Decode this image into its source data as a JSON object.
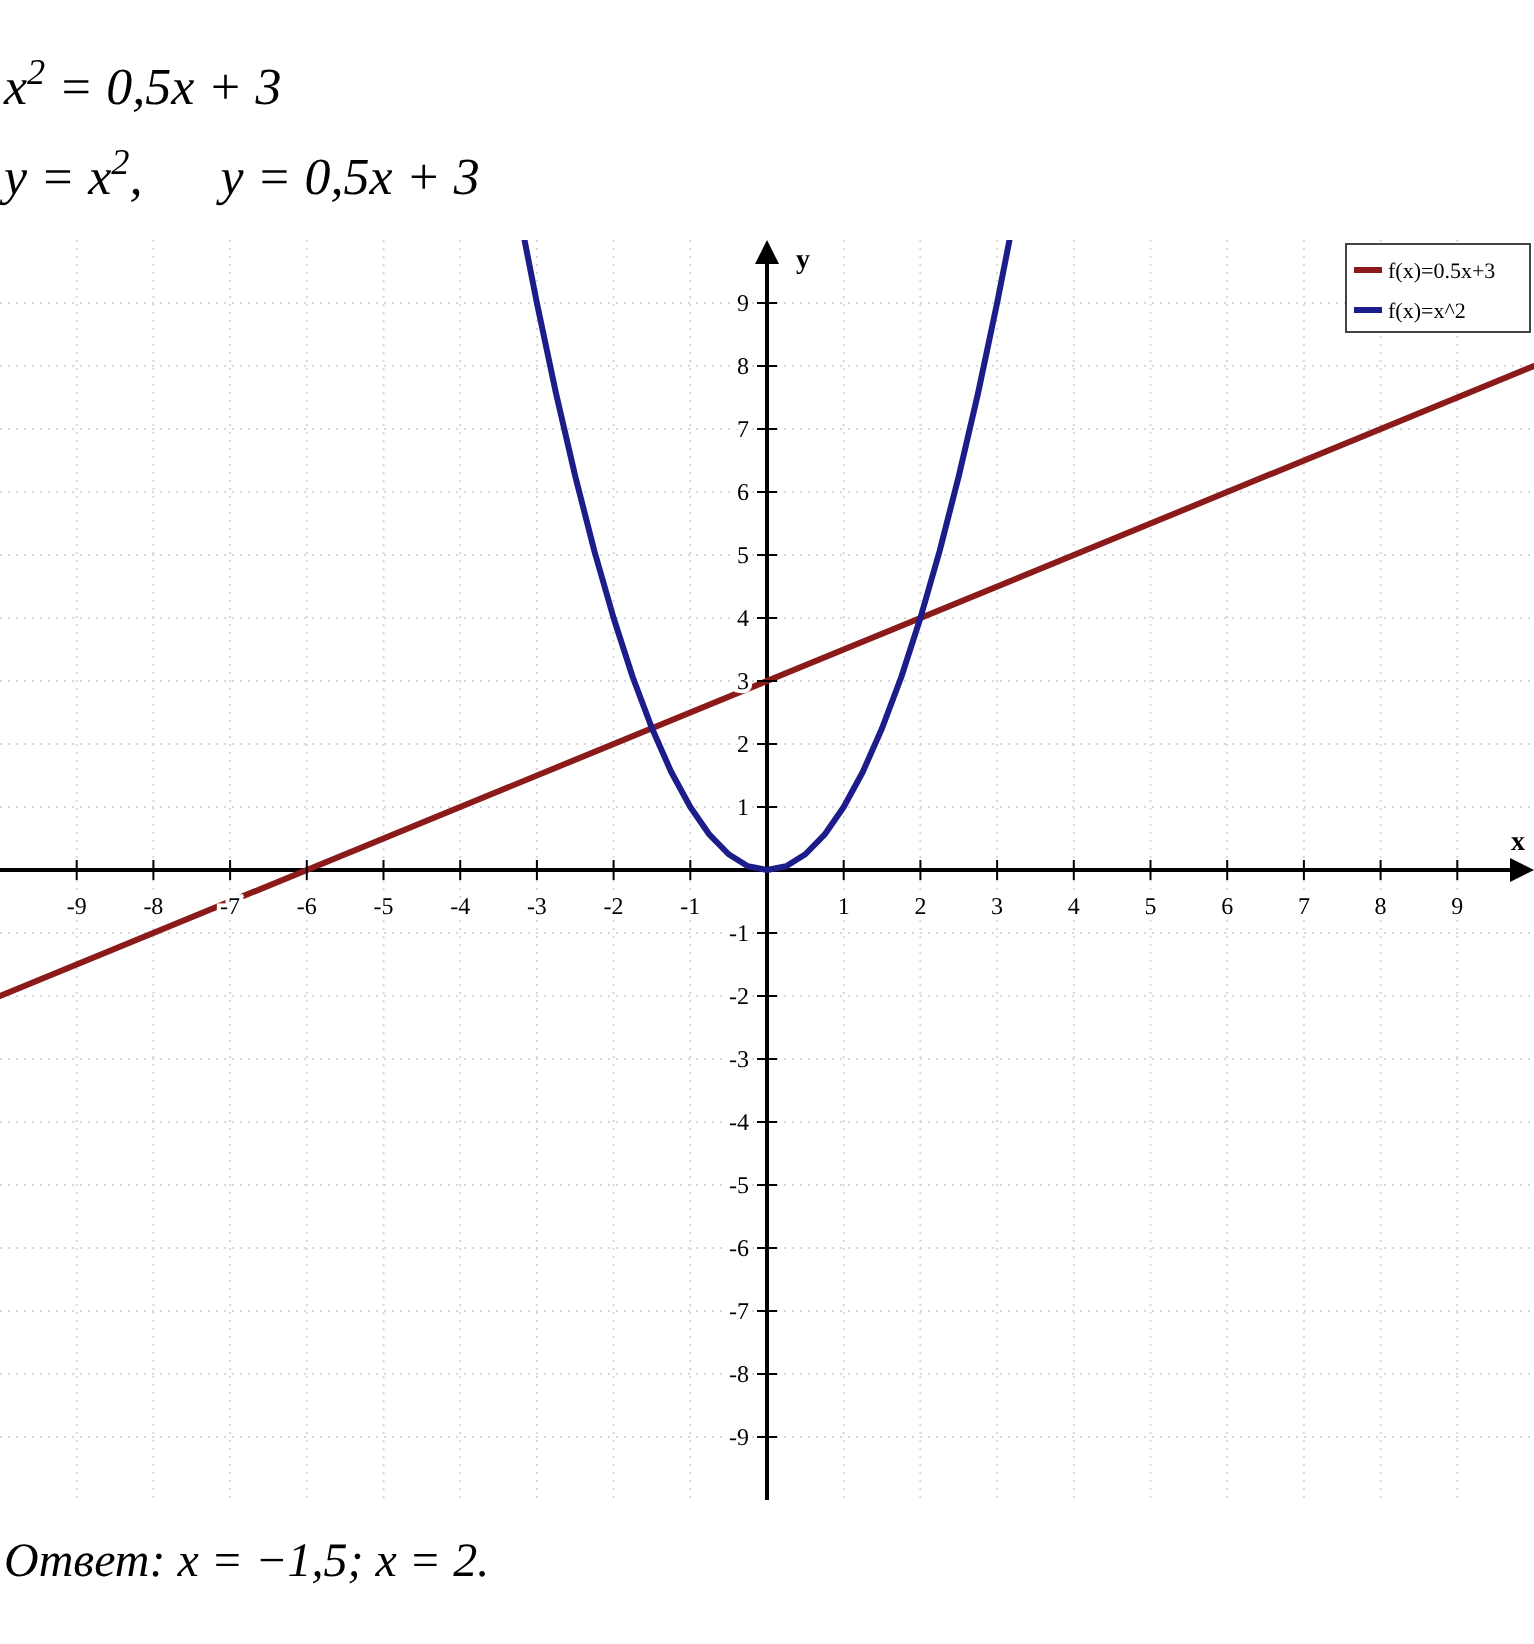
{
  "chart_data": {
    "type": "line",
    "title": "x$^{2}$ = 0,5x + 3",
    "subtitle": "y = x$^{2}$,      y = 0,5x + 3",
    "xlabel": "x",
    "ylabel": "y",
    "annotations": [
      "Ответ: x = −1,5; x = 2."
    ],
    "xlim": [
      -10,
      10
    ],
    "ylim": [
      -10,
      10
    ],
    "xticks": [
      -9,
      -8,
      -7,
      -6,
      -5,
      -4,
      -3,
      -2,
      -1,
      1,
      2,
      3,
      4,
      5,
      6,
      7,
      8,
      9
    ],
    "yticks": [
      -9,
      -8,
      -7,
      -6,
      -5,
      -4,
      -3,
      -2,
      -1,
      1,
      2,
      3,
      4,
      5,
      6,
      7,
      8,
      9
    ],
    "grid": true,
    "legend": "top right",
    "marker": "none",
    "line_style": "solid",
    "series": [
      {
        "name": "f(x)=0.5x+3",
        "color": "#8b1a1a",
        "x": [
          -10,
          10
        ],
        "values": [
          -2,
          8
        ]
      },
      {
        "name": "f(x)=x^2",
        "color": "#1c1c8a",
        "x": [
          -3.16,
          -3,
          -2.75,
          -2.5,
          -2.25,
          -2,
          -1.75,
          -1.5,
          -1.25,
          -1,
          -0.75,
          -0.5,
          -0.25,
          0,
          0.25,
          0.5,
          0.75,
          1,
          1.25,
          1.5,
          1.75,
          2,
          2.25,
          2.5,
          2.75,
          3,
          3.16
        ],
        "values": [
          9.99,
          9,
          7.56,
          6.25,
          5.06,
          4,
          3.06,
          2.25,
          1.56,
          1,
          0.56,
          0.25,
          0.06,
          0,
          0.06,
          0.25,
          0.56,
          1,
          1.56,
          2.25,
          3.06,
          4,
          5.06,
          6.25,
          7.56,
          9,
          9.99
        ]
      }
    ]
  }
}
